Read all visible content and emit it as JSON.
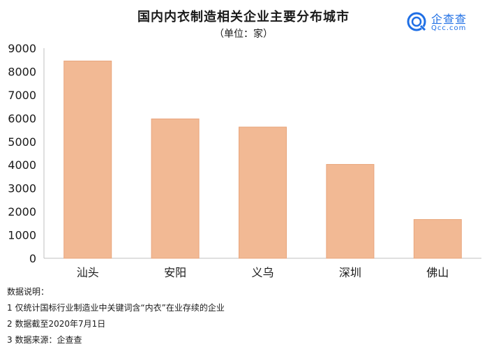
{
  "header": {
    "title": "国内内衣制造相关企业主要分布城市",
    "subtitle": "（单位：家）"
  },
  "logo": {
    "name": "企查查",
    "domain": "Qcc.com",
    "color": "#1f6fe5"
  },
  "chart_data": {
    "type": "bar",
    "title": "国内内衣制造相关企业主要分布城市",
    "subtitle": "（单位：家）",
    "categories": [
      "汕头",
      "安阳",
      "义乌",
      "深圳",
      "佛山"
    ],
    "values": [
      8450,
      5970,
      5620,
      4020,
      1660
    ],
    "ylim": [
      0,
      9000
    ],
    "yticks": [
      "0",
      "1000",
      "2000",
      "3000",
      "4000",
      "5000",
      "6000",
      "7000",
      "8000",
      "9000"
    ],
    "grid": false,
    "legend": "none",
    "bar_color": "#f2b994",
    "bar_edge_color": "#e8a57c"
  },
  "notes": {
    "heading": "数据说明：",
    "items": [
      "1 仅统计国标行业制造业中关键词含“内衣”在业存续的企业",
      "2 数据截至2020年7月1日",
      "3 数据来源：企查查"
    ]
  }
}
